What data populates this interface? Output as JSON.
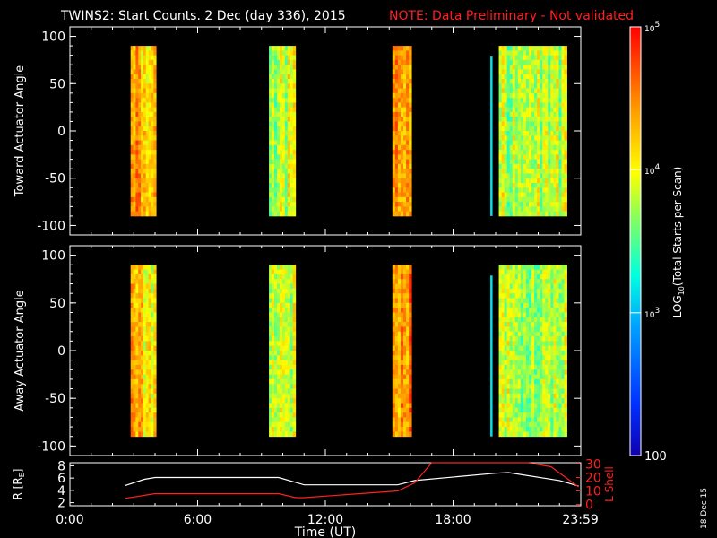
{
  "title": "TWINS2: Start Counts.  2 Dec (day 336), 2015",
  "note": "NOTE: Data Preliminary - Not validated",
  "date_stamp": "18 Dec 15",
  "colors": {
    "background": "#000000",
    "axis": "#ffffff",
    "note": "#ff2020",
    "lshell": "#ff2020",
    "radius": "#ffffff"
  },
  "chart_data": [
    {
      "type": "heatmap",
      "panel": "top",
      "ylabel": "Toward Actuator Angle",
      "ylim": [
        -110,
        110
      ],
      "yticks": [
        "100",
        "50",
        "0",
        "-50",
        "-100"
      ],
      "xlim": [
        0,
        24
      ],
      "angle_range": [
        -90,
        90
      ],
      "blocks": [
        {
          "start_hr": 2.85,
          "end_hr": 4.05,
          "level": 0.78
        },
        {
          "start_hr": 9.35,
          "end_hr": 10.6,
          "level": 0.62
        },
        {
          "start_hr": 15.15,
          "end_hr": 16.05,
          "level": 0.83
        },
        {
          "start_hr": 19.75,
          "end_hr": 19.85,
          "level": 0.38
        },
        {
          "start_hr": 20.15,
          "end_hr": 23.35,
          "level": 0.6
        }
      ]
    },
    {
      "type": "heatmap",
      "panel": "bottom",
      "ylabel": "Away Actuator Angle",
      "ylim": [
        -110,
        110
      ],
      "yticks": [
        "100",
        "50",
        "0",
        "-50",
        "-100"
      ],
      "xlim": [
        0,
        24
      ],
      "angle_range": [
        -90,
        90
      ],
      "blocks": [
        {
          "start_hr": 2.85,
          "end_hr": 4.05,
          "level": 0.72
        },
        {
          "start_hr": 9.35,
          "end_hr": 10.6,
          "level": 0.6
        },
        {
          "start_hr": 15.15,
          "end_hr": 16.05,
          "level": 0.83
        },
        {
          "start_hr": 19.75,
          "end_hr": 19.85,
          "level": 0.38
        },
        {
          "start_hr": 20.15,
          "end_hr": 23.35,
          "level": 0.6
        }
      ]
    },
    {
      "type": "line",
      "panel": "orbit",
      "xlabel": "Time (UT)",
      "x_ticks": [
        "0:00",
        "6:00",
        "12:00",
        "18:00",
        "23:59"
      ],
      "ylabel_left": "R [R",
      "ylabel_left_sub": "E",
      "ylabel_left_end": "]",
      "ylabel_right": "L Shell",
      "y_left_ticks": [
        "8",
        "6",
        "4",
        "2"
      ],
      "y_right_ticks": [
        "30",
        "20",
        "10",
        "0"
      ],
      "y_left_range": [
        1.5,
        8.5
      ],
      "y_right_range": [
        -1,
        31
      ],
      "series": [
        {
          "name": "R [R",
          "axis": "left",
          "x": [
            2.6,
            3.5,
            4.0,
            9.8,
            10.6,
            11.0,
            15.4,
            16.2,
            20.0,
            20.6,
            23.0,
            23.9
          ],
          "y": [
            4.8,
            5.8,
            6.1,
            6.1,
            5.3,
            4.9,
            4.9,
            5.6,
            6.8,
            6.9,
            5.6,
            4.7
          ]
        },
        {
          "name": "L Shell",
          "axis": "right",
          "x": [
            2.6,
            4.0,
            9.8,
            10.6,
            11.0,
            15.4,
            16.2,
            17.0,
            21.5,
            22.6,
            23.9
          ],
          "y": [
            4.5,
            8.0,
            8.0,
            5.0,
            5.0,
            10.0,
            16.0,
            31.0,
            31.0,
            28.0,
            13.0
          ]
        }
      ]
    }
  ],
  "colorbar": {
    "label": "LOG",
    "label_sub": "10",
    "label_end": "(Total Starts per Scan)",
    "ticks": [
      {
        "base": "10",
        "exp": "5",
        "level": 1.0
      },
      {
        "base": "10",
        "exp": "4",
        "level": 0.667
      },
      {
        "base": "10",
        "exp": "3",
        "level": 0.333
      },
      {
        "base": "100",
        "exp": "",
        "level": 0.0
      }
    ]
  }
}
